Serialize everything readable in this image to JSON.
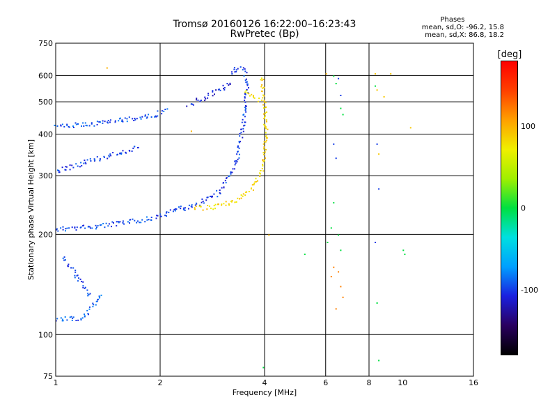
{
  "chart_data": {
    "type": "scatter",
    "title": "Tromsø 20160126 16:22:00–16:23:43",
    "subtitle": "RwPretec (Bp)",
    "xlabel": "Frequency [MHz]",
    "ylabel": "Stationary phase Virtual Height [km]",
    "x_scale": "log2",
    "y_scale": "log",
    "xlim": [
      1,
      16
    ],
    "ylim": [
      75,
      750
    ],
    "x_ticks": [
      "1",
      "2",
      "4",
      "6",
      "8",
      "10",
      "16"
    ],
    "y_ticks": [
      "75",
      "100",
      "200",
      "300",
      "400",
      "500",
      "600",
      "750"
    ],
    "x_grid_values": [
      1,
      2,
      4,
      6,
      8,
      16
    ],
    "y_grid_values": [
      100,
      200,
      300,
      400,
      500,
      600
    ],
    "grid": true,
    "stats": {
      "title": "Phases",
      "line_o": "mean, sd,O: -96.2, 15.8",
      "line_x": "mean, sd,X:  86.8, 18.2"
    },
    "colorbar": {
      "label": "[deg]",
      "range": [
        -180,
        180
      ],
      "ticks": [
        "100",
        "0",
        "-100"
      ],
      "tick_values": [
        100,
        0,
        -100
      ],
      "colors": [
        "#000000",
        "#2a0060",
        "#1a20e0",
        "#00a0ff",
        "#00e0e0",
        "#00e040",
        "#a0f000",
        "#f0f000",
        "#ffa000",
        "#ff4000",
        "#ff0000"
      ]
    },
    "series": [
      {
        "type": "trace",
        "phase": -96,
        "x": [
          1.0,
          1.3,
          1.6,
          1.9,
          2.1,
          2.35
        ],
        "y": [
          208,
          212,
          218,
          225,
          232,
          245
        ]
      },
      {
        "type": "trace",
        "phase": -100,
        "x": [
          2.3,
          2.6,
          2.9,
          3.1,
          3.3,
          3.45
        ],
        "y": [
          238,
          250,
          265,
          290,
          330,
          420
        ]
      },
      {
        "type": "trace",
        "phase": -100,
        "x": [
          3.45,
          3.5,
          3.55,
          3.5,
          3.4,
          3.3,
          3.2
        ],
        "y": [
          420,
          490,
          560,
          610,
          640,
          630,
          600
        ]
      },
      {
        "type": "trace",
        "phase": -95,
        "x": [
          1.0,
          1.3,
          1.6,
          1.9,
          2.1
        ],
        "y": [
          423,
          432,
          445,
          458,
          472
        ]
      },
      {
        "type": "trace",
        "phase": -110,
        "x": [
          2.4,
          2.7,
          3.0,
          3.2
        ],
        "y": [
          490,
          520,
          550,
          580
        ]
      },
      {
        "type": "trace",
        "phase": -100,
        "x": [
          1.0,
          1.15,
          1.3,
          1.45,
          1.6,
          1.75
        ],
        "y": [
          310,
          325,
          338,
          348,
          358,
          366
        ]
      },
      {
        "type": "trace",
        "phase": 85,
        "x": [
          2.5,
          2.8,
          3.1,
          3.4,
          3.65,
          3.85,
          3.98,
          4.02,
          4.0,
          3.95,
          3.9
        ],
        "y": [
          240,
          242,
          248,
          258,
          275,
          300,
          340,
          400,
          470,
          540,
          600
        ]
      },
      {
        "type": "trace",
        "phase": 80,
        "x": [
          3.5,
          3.7,
          3.9
        ],
        "y": [
          540,
          520,
          500
        ]
      },
      {
        "type": "trace",
        "phase": -92,
        "x": [
          1.0,
          1.1,
          1.2,
          1.3,
          1.35
        ],
        "y": [
          112,
          112,
          113,
          125,
          135
        ]
      },
      {
        "type": "trace",
        "phase": -98,
        "x": [
          1.05,
          1.1,
          1.15,
          1.2,
          1.25
        ],
        "y": [
          170,
          160,
          150,
          140,
          130
        ]
      },
      {
        "type": "scatter",
        "phase": 0,
        "x": [
          6.3,
          6.4,
          6.6,
          6.7,
          6.3,
          6.5,
          6.6,
          6.05,
          6.2
        ],
        "y": [
          600,
          570,
          480,
          460,
          250,
          200,
          180,
          190,
          210
        ]
      },
      {
        "type": "scatter",
        "phase": 120,
        "x": [
          6.3,
          6.5,
          6.6,
          6.7,
          6.4,
          6.2
        ],
        "y": [
          160,
          155,
          140,
          130,
          120,
          150
        ]
      },
      {
        "type": "scatter",
        "phase": -100,
        "x": [
          6.5,
          6.6,
          6.3,
          6.4,
          8.4,
          8.5,
          8.3
        ],
        "y": [
          590,
          525,
          375,
          340,
          375,
          275,
          190
        ]
      },
      {
        "type": "scatter",
        "phase": 90,
        "x": [
          8.3,
          8.4,
          8.8,
          9.2,
          8.5,
          10.5
        ],
        "y": [
          610,
          545,
          520,
          610,
          350,
          420
        ]
      },
      {
        "type": "scatter",
        "phase": 0,
        "x": [
          8.3,
          8.4,
          8.5,
          10.0,
          10.1,
          5.2,
          3.95
        ],
        "y": [
          560,
          125,
          84,
          180,
          175,
          175,
          80
        ]
      },
      {
        "type": "scatter",
        "phase": 100,
        "x": [
          1.4,
          4.1,
          2.45,
          6.0
        ],
        "y": [
          635,
          200,
          410,
          610
        ]
      }
    ]
  }
}
